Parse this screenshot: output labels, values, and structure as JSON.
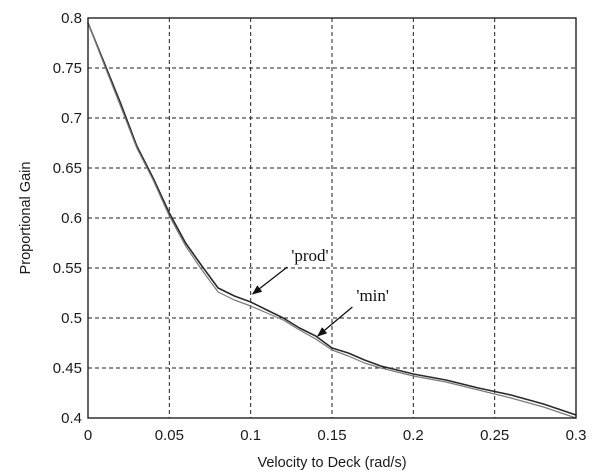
{
  "chart_data": {
    "type": "line",
    "title": "",
    "xlabel": "Velocity to Deck (rad/s)",
    "ylabel": "Proportional Gain",
    "xlim": [
      0,
      0.3
    ],
    "ylim": [
      0.4,
      0.8
    ],
    "xticks": [
      "0",
      "0.05",
      "0.1",
      "0.15",
      "0.2",
      "0.25",
      "0.3"
    ],
    "yticks": [
      "0.4",
      "0.45",
      "0.5",
      "0.55",
      "0.6",
      "0.65",
      "0.7",
      "0.75",
      "0.8"
    ],
    "grid": true,
    "series": [
      {
        "name": "'prod'",
        "color": "#2a2a2a",
        "x": [
          0,
          0.01,
          0.02,
          0.03,
          0.04,
          0.05,
          0.06,
          0.07,
          0.08,
          0.09,
          0.1,
          0.11,
          0.12,
          0.13,
          0.14,
          0.15,
          0.16,
          0.17,
          0.18,
          0.19,
          0.2,
          0.22,
          0.24,
          0.26,
          0.28,
          0.3
        ],
        "y": [
          0.795,
          0.755,
          0.715,
          0.672,
          0.64,
          0.605,
          0.575,
          0.552,
          0.53,
          0.522,
          0.516,
          0.508,
          0.5,
          0.49,
          0.482,
          0.47,
          0.465,
          0.458,
          0.452,
          0.448,
          0.444,
          0.438,
          0.43,
          0.423,
          0.414,
          0.403
        ]
      },
      {
        "name": "'min'",
        "color": "#7a7a7a",
        "x": [
          0,
          0.01,
          0.02,
          0.03,
          0.04,
          0.05,
          0.06,
          0.07,
          0.08,
          0.09,
          0.1,
          0.11,
          0.12,
          0.13,
          0.14,
          0.15,
          0.16,
          0.17,
          0.18,
          0.19,
          0.2,
          0.22,
          0.24,
          0.26,
          0.28,
          0.3
        ],
        "y": [
          0.795,
          0.753,
          0.712,
          0.67,
          0.638,
          0.602,
          0.572,
          0.548,
          0.526,
          0.518,
          0.512,
          0.505,
          0.498,
          0.488,
          0.479,
          0.468,
          0.462,
          0.455,
          0.45,
          0.446,
          0.442,
          0.436,
          0.428,
          0.42,
          0.411,
          0.4
        ]
      }
    ],
    "annotations": [
      {
        "text": "'prod'",
        "x": 0.125,
        "y": 0.555,
        "arrow_to": [
          0.1,
          0.522
        ]
      },
      {
        "text": "'min'",
        "x": 0.165,
        "y": 0.515,
        "arrow_to": [
          0.14,
          0.48
        ]
      }
    ]
  }
}
